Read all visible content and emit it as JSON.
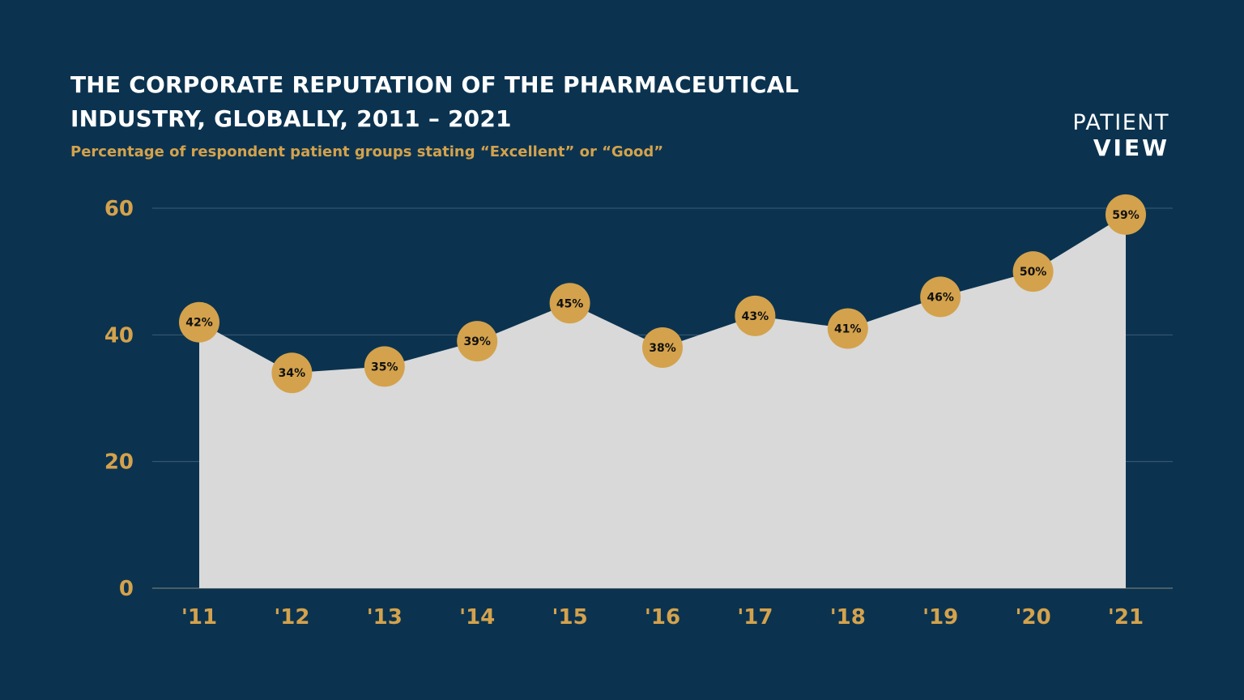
{
  "header": {
    "title": "THE CORPORATE REPUTATION OF THE PHARMACEUTICAL INDUSTRY, GLOBALLY, 2011 – 2021",
    "subtitle": "Percentage of respondent patient groups stating “Excellent” or “Good”"
  },
  "logo": {
    "line1": "PATIENT",
    "line2": "VIEW"
  },
  "colors": {
    "background": "#0b3350",
    "accent": "#d4a24c",
    "area_fill": "#d9d9d9",
    "gridline": "#3c5d76"
  },
  "chart_data": {
    "type": "area",
    "categories": [
      "'11",
      "'12",
      "'13",
      "'14",
      "'15",
      "'16",
      "'17",
      "'18",
      "'19",
      "'20",
      "'21"
    ],
    "values": [
      42,
      34,
      35,
      39,
      45,
      38,
      43,
      41,
      46,
      50,
      59
    ],
    "data_labels": [
      "42%",
      "34%",
      "35%",
      "39%",
      "45%",
      "38%",
      "43%",
      "41%",
      "46%",
      "50%",
      "59%"
    ],
    "yticks": [
      0,
      20,
      40,
      60
    ],
    "ylim": [
      0,
      60
    ],
    "grid": true,
    "legend": "none"
  }
}
